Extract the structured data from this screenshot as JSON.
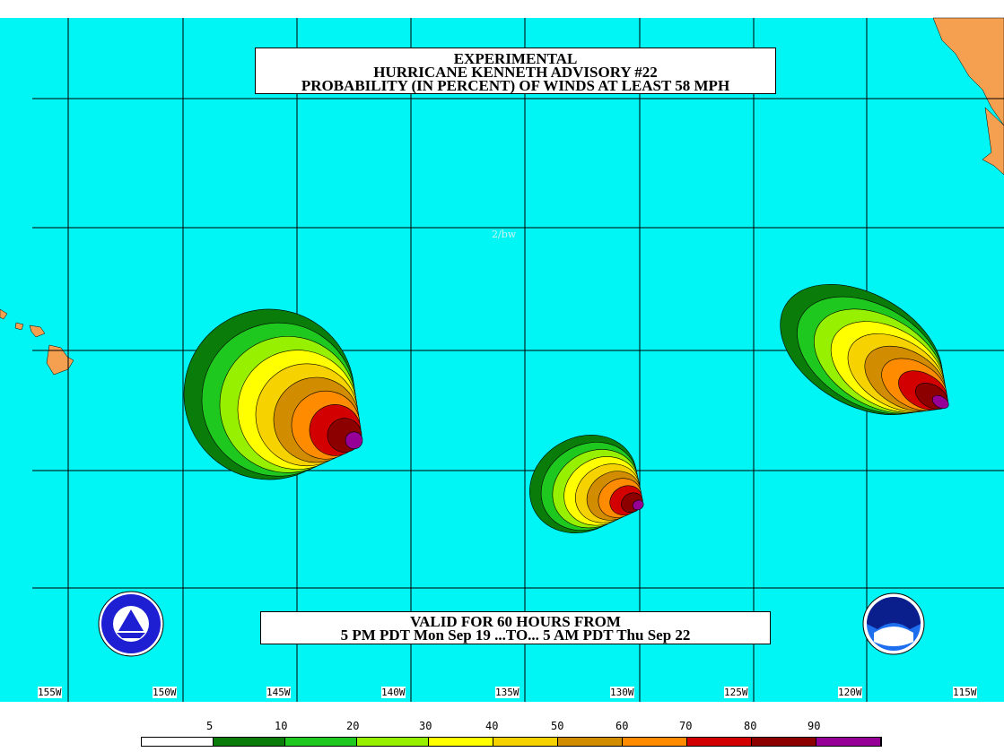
{
  "title": {
    "line1": "EXPERIMENTAL",
    "line2": "HURRICANE KENNETH ADVISORY #22",
    "line3": "PROBABILITY (IN PERCENT) OF WINDS AT LEAST 58 MPH"
  },
  "valid": {
    "line1": "VALID FOR 60 HOURS FROM",
    "line2": "5 PM PDT Mon Sep 19 ...TO... 5 AM PDT Thu Sep 22"
  },
  "faint_label": "2/bw",
  "longitudes": [
    "155W",
    "150W",
    "145W",
    "140W",
    "135W",
    "130W",
    "125W",
    "120W",
    "115W"
  ],
  "legend": {
    "labels": [
      "5",
      "10",
      "20",
      "30",
      "40",
      "50",
      "60",
      "70",
      "80",
      "90"
    ],
    "colors": [
      "#ffffff",
      "#0a7c0a",
      "#1ec81e",
      "#96f000",
      "#ffff00",
      "#f5d200",
      "#d28c00",
      "#ff8c00",
      "#d20000",
      "#8c0000",
      "#960096"
    ]
  },
  "colors": {
    "ocean": "#00f5f5",
    "land": "#f5a050",
    "grid": "#000000"
  },
  "logos": [
    "nws-logo",
    "noaa-logo"
  ]
}
